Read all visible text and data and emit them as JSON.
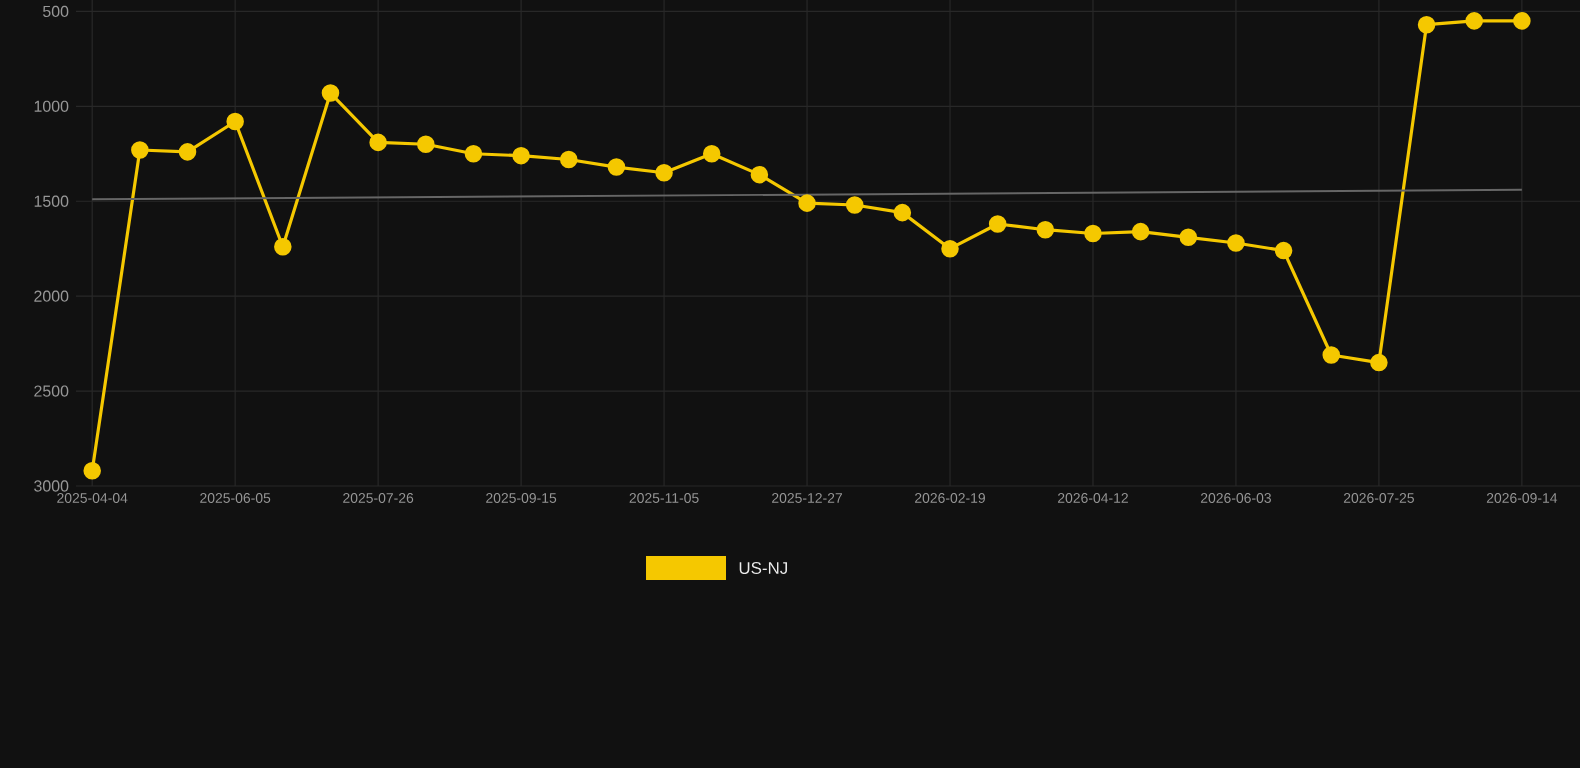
{
  "chart_data": {
    "type": "line",
    "categories": [
      "2025-04-04",
      null,
      null,
      "2025-06-05",
      null,
      null,
      "2025-07-26",
      null,
      null,
      "2025-09-15",
      null,
      null,
      "2025-11-05",
      null,
      null,
      "2025-12-27",
      null,
      null,
      "2026-02-19",
      null,
      null,
      "2026-04-12",
      null,
      null,
      "2026-06-03",
      null,
      null,
      "2026-07-25",
      null,
      null,
      "2026-09-14"
    ],
    "series": [
      {
        "name": "US-NJ",
        "color": "#f5c800",
        "marker": "circle",
        "values": [
          2920,
          1230,
          1240,
          1080,
          1740,
          930,
          1190,
          1200,
          1250,
          1260,
          1280,
          1320,
          1350,
          1250,
          1360,
          1510,
          1520,
          1560,
          1750,
          1620,
          1650,
          1670,
          1660,
          1690,
          1720,
          1760,
          2310,
          2350,
          570,
          550,
          550
        ]
      },
      {
        "type": "line",
        "color": "#666666",
        "marker": "none",
        "values": [
          1490,
          null,
          null,
          null,
          null,
          null,
          null,
          null,
          null,
          null,
          null,
          null,
          null,
          null,
          null,
          null,
          null,
          null,
          null,
          null,
          null,
          null,
          null,
          null,
          null,
          null,
          null,
          null,
          null,
          null,
          1440
        ]
      }
    ],
    "ylim": [
      3000,
      440
    ],
    "yticks": [
      500,
      1000,
      1500,
      2000,
      2500,
      3000
    ],
    "grid": true,
    "legend": "bottom",
    "line_style": "solid"
  }
}
